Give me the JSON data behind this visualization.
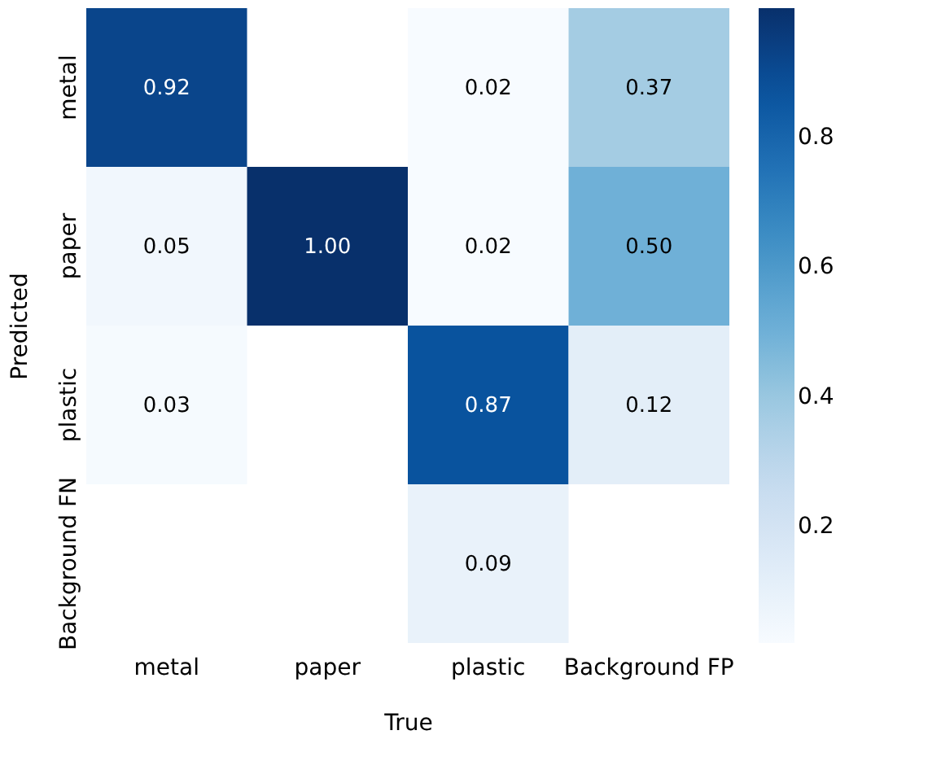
{
  "chart_data": {
    "type": "heatmap",
    "xlabel": "True",
    "ylabel": "Predicted",
    "categories": [
      "metal",
      "paper",
      "plastic",
      "Background FP"
    ],
    "y_categories": [
      "metal",
      "paper",
      "plastic",
      "Background FN"
    ],
    "cells": [
      [
        0.92,
        null,
        0.02,
        0.37
      ],
      [
        0.05,
        1.0,
        0.02,
        0.5
      ],
      [
        0.03,
        null,
        0.87,
        0.12
      ],
      [
        null,
        null,
        0.09,
        null
      ]
    ],
    "cell_labels": [
      [
        "0.92",
        null,
        "0.02",
        "0.37"
      ],
      [
        "0.05",
        "1.00",
        "0.02",
        "0.50"
      ],
      [
        "0.03",
        null,
        "0.87",
        "0.12"
      ],
      [
        null,
        null,
        "0.09",
        null
      ]
    ],
    "clim": [
      0.02,
      1.0
    ],
    "cticks": [
      0.2,
      0.4,
      0.6,
      0.8
    ],
    "grid": false
  }
}
